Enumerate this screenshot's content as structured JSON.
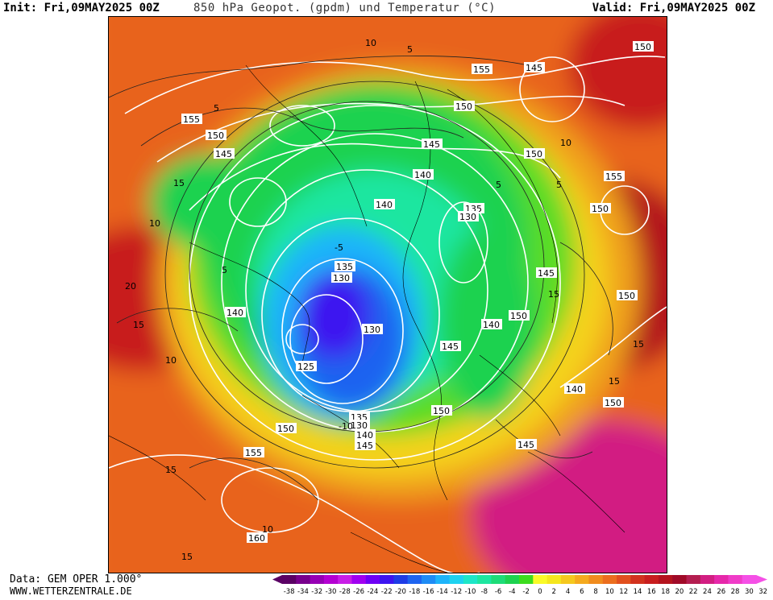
{
  "header": {
    "init": "Init: Fri,09MAY2025 00Z",
    "title": "850 hPa Geopot. (gpdm) und Temperatur (°C)",
    "valid": "Valid: Fri,09MAY2025 00Z"
  },
  "footer": {
    "data_source": "Data: GEM OPER 1.000°",
    "website": "WWW.WETTERZENTRALE.DE"
  },
  "legend": {
    "ticks": [
      "-38",
      "-34",
      "-32",
      "-30",
      "-28",
      "-26",
      "-24",
      "-22",
      "-20",
      "-18",
      "-16",
      "-14",
      "-12",
      "-10",
      "-8",
      "-6",
      "-4",
      "-2",
      "0",
      "2",
      "4",
      "6",
      "8",
      "10",
      "12",
      "14",
      "16",
      "18",
      "20",
      "22",
      "24",
      "26",
      "28",
      "30",
      "32"
    ],
    "colors": [
      "#5a0064",
      "#78008c",
      "#9600b4",
      "#b400d2",
      "#c81ee6",
      "#a000f0",
      "#6e00f5",
      "#3c14f0",
      "#1e3ce6",
      "#1e64f0",
      "#1e8cf5",
      "#1eb4fa",
      "#1ed2f0",
      "#1ee6c8",
      "#1ee6a0",
      "#1edc78",
      "#1ed250",
      "#3cdc1e",
      "#fafa28",
      "#f5e61e",
      "#f5c81e",
      "#f5aa1e",
      "#f08c1e",
      "#eb6e1e",
      "#e1501e",
      "#d2321e",
      "#c81e1e",
      "#b4141e",
      "#a00a28",
      "#b41e50",
      "#d21e82",
      "#e628aa",
      "#f03cc8",
      "#f550e6"
    ]
  },
  "contour_labels": {
    "geopotential": [
      "150",
      "145",
      "155",
      "150",
      "145",
      "150",
      "155",
      "150",
      "140",
      "140",
      "145",
      "135",
      "130",
      "150",
      "155",
      "150",
      "145",
      "135",
      "130",
      "140",
      "150",
      "140",
      "130",
      "125",
      "145",
      "140",
      "150",
      "150",
      "150",
      "135",
      "130",
      "140",
      "145",
      "145",
      "155",
      "160"
    ],
    "temperature": [
      "10",
      "5",
      "5",
      "15",
      "10",
      "5",
      "-5",
      "-10",
      "20",
      "15",
      "10",
      "15",
      "10",
      "15",
      "15",
      "5",
      "10",
      "5",
      "15",
      "15"
    ]
  }
}
